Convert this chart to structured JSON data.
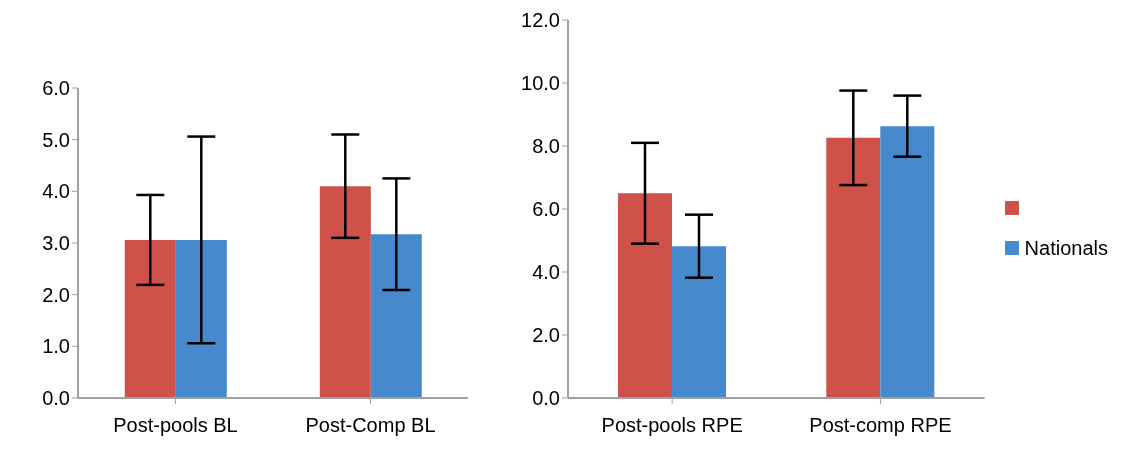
{
  "chart_data": [
    {
      "type": "bar",
      "categories": [
        "Post-pools BL",
        "Post-Comp BL"
      ],
      "ylim": [
        0,
        6
      ],
      "yticks": [
        {
          "value": 0,
          "label": "0.0"
        },
        {
          "value": 1,
          "label": "1.0"
        },
        {
          "value": 2,
          "label": "2.0"
        },
        {
          "value": 3,
          "label": "3.0"
        },
        {
          "value": 4,
          "label": "4.0"
        },
        {
          "value": 5,
          "label": "5.0"
        },
        {
          "value": 6,
          "label": "6.0"
        }
      ],
      "grid": false,
      "legend": false,
      "series": [
        {
          "color": "#d0504a",
          "values": [
            3.06,
            4.1
          ],
          "errors": [
            0.87,
            1.0
          ]
        },
        {
          "color": "#4689cc",
          "values": [
            3.06,
            3.17
          ],
          "errors": [
            2.0,
            1.08
          ]
        }
      ]
    },
    {
      "type": "bar",
      "categories": [
        "Post-pools RPE",
        "Post-comp RPE"
      ],
      "ylim": [
        0,
        12
      ],
      "yticks": [
        {
          "value": 0,
          "label": "0.0"
        },
        {
          "value": 2,
          "label": "2.0"
        },
        {
          "value": 4,
          "label": "4.0"
        },
        {
          "value": 6,
          "label": "6.0"
        },
        {
          "value": 8,
          "label": "8.0"
        },
        {
          "value": 10,
          "label": "10.0"
        },
        {
          "value": 12,
          "label": "12.0"
        }
      ],
      "grid": false,
      "legend": "right",
      "series": [
        {
          "color": "#d0504a",
          "values": [
            6.5,
            8.26
          ],
          "errors": [
            1.6,
            1.5
          ]
        },
        {
          "name": "Nationals",
          "color": "#4689cc",
          "values": [
            4.82,
            8.63
          ],
          "errors": [
            1.0,
            0.97
          ]
        }
      ]
    }
  ]
}
